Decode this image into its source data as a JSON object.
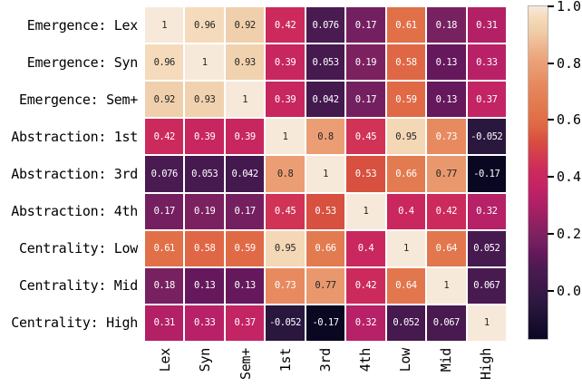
{
  "figure": {
    "background": "#ffffff",
    "grid_line_color": "#ffffff"
  },
  "chart_data": {
    "type": "heatmap",
    "title": "",
    "xlabel": "",
    "ylabel": "",
    "row_labels": [
      "Emergence: Lex",
      "Emergence: Syn",
      "Emergence: Sem+",
      "Abstraction: 1st",
      "Abstraction: 3rd",
      "Abstraction: 4th",
      "Centrality: Low",
      "Centrality: Mid",
      "Centrality: High"
    ],
    "col_labels": [
      "Lex",
      "Syn",
      "Sem+",
      "1st",
      "3rd",
      "4th",
      "Low",
      "Mid",
      "High"
    ],
    "matrix": [
      [
        1,
        0.96,
        0.92,
        0.42,
        0.076,
        0.17,
        0.61,
        0.18,
        0.31
      ],
      [
        0.96,
        1,
        0.93,
        0.39,
        0.053,
        0.19,
        0.58,
        0.13,
        0.33
      ],
      [
        0.92,
        0.93,
        1,
        0.39,
        0.042,
        0.17,
        0.59,
        0.13,
        0.37
      ],
      [
        0.42,
        0.39,
        0.39,
        1,
        0.8,
        0.45,
        0.95,
        0.73,
        -0.052
      ],
      [
        0.076,
        0.053,
        0.042,
        0.8,
        1,
        0.53,
        0.66,
        0.77,
        -0.17
      ],
      [
        0.17,
        0.19,
        0.17,
        0.45,
        0.53,
        1,
        0.4,
        0.42,
        0.32
      ],
      [
        0.61,
        0.58,
        0.59,
        0.95,
        0.66,
        0.4,
        1,
        0.64,
        0.052
      ],
      [
        0.18,
        0.13,
        0.13,
        0.73,
        0.77,
        0.42,
        0.64,
        1,
        0.067
      ],
      [
        0.31,
        0.33,
        0.37,
        -0.052,
        -0.17,
        0.32,
        0.052,
        0.067,
        1
      ]
    ],
    "vmin": -0.17,
    "vmax": 1.0,
    "colormap_name": "rocket",
    "colormap_anchors": [
      [
        -0.17,
        "#0a0722"
      ],
      [
        -0.052,
        "#2a173e"
      ],
      [
        0.05,
        "#46194f"
      ],
      [
        0.08,
        "#4a1b51"
      ],
      [
        0.13,
        "#65185c"
      ],
      [
        0.17,
        "#742060"
      ],
      [
        0.19,
        "#7b215f"
      ],
      [
        0.31,
        "#b32066"
      ],
      [
        0.33,
        "#b82167"
      ],
      [
        0.37,
        "#c32464"
      ],
      [
        0.39,
        "#c8265f"
      ],
      [
        0.42,
        "#cc2a5d"
      ],
      [
        0.45,
        "#d03355"
      ],
      [
        0.53,
        "#d8503f"
      ],
      [
        0.58,
        "#e06745"
      ],
      [
        0.61,
        "#e17049"
      ],
      [
        0.66,
        "#e27b50"
      ],
      [
        0.73,
        "#e78a60"
      ],
      [
        0.77,
        "#e9986e"
      ],
      [
        0.8,
        "#eb9e74"
      ],
      [
        0.92,
        "#f0d0ac"
      ],
      [
        0.95,
        "#f4d7b5"
      ],
      [
        1.0,
        "#f7e9d9"
      ]
    ],
    "annotation_text_dark": "#262626",
    "annotation_text_light": "#ffffff",
    "luminance_threshold": 0.408,
    "legend_position": "right",
    "colorbar": {
      "ticks": [
        {
          "value": 1.0,
          "label": "1.0"
        },
        {
          "value": 0.8,
          "label": "0.8"
        },
        {
          "value": 0.6,
          "label": "0.6"
        },
        {
          "value": 0.4,
          "label": "0.4"
        },
        {
          "value": 0.2,
          "label": "0.2"
        },
        {
          "value": 0.0,
          "label": "0.0"
        }
      ]
    }
  }
}
